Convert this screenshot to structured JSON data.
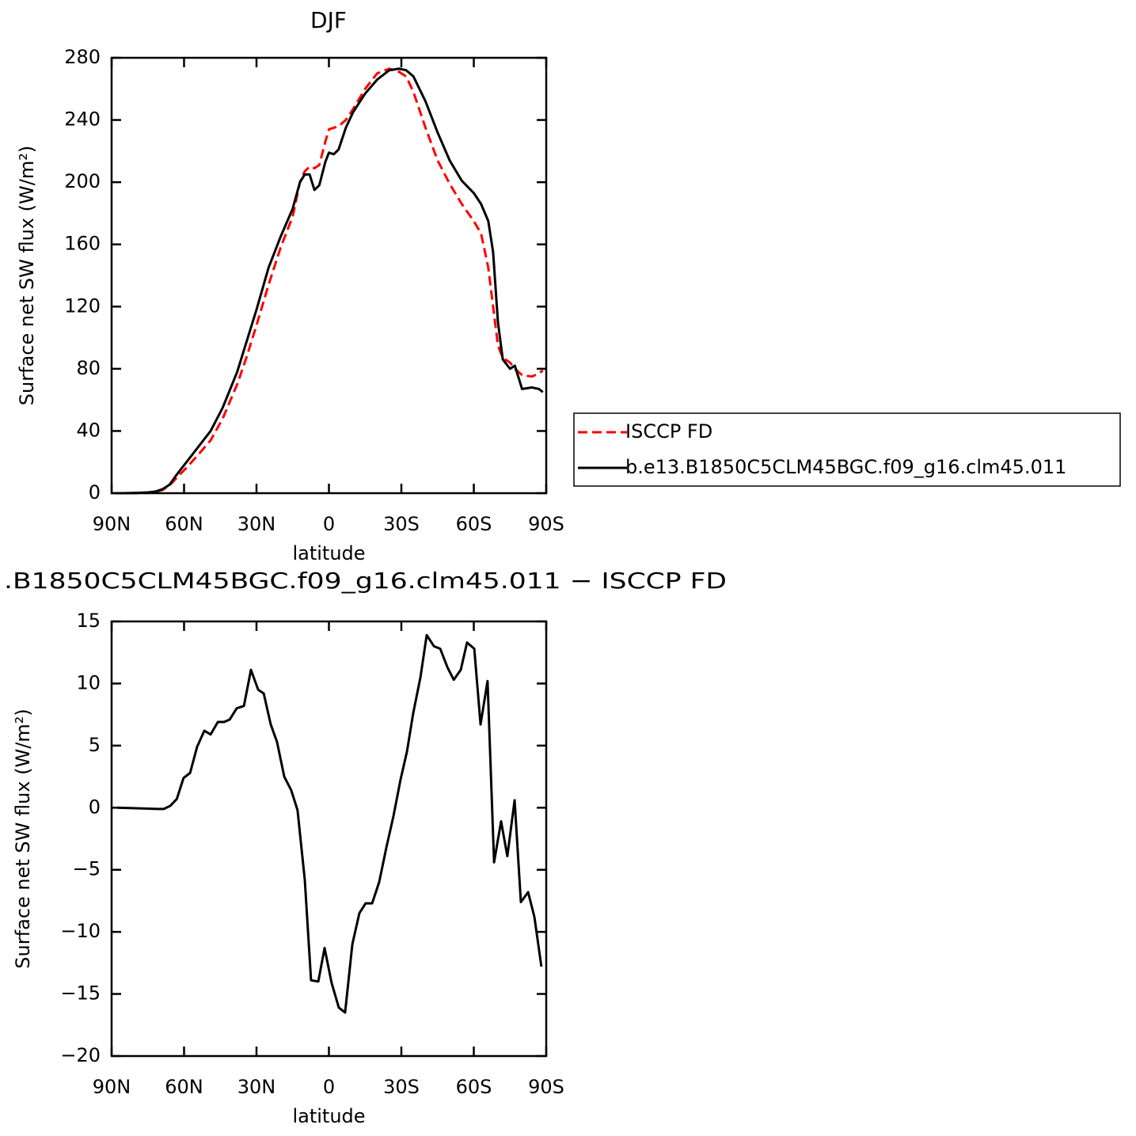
{
  "chart_data": [
    {
      "type": "line",
      "title": "DJF",
      "xlabel": "latitude",
      "ylabel": "Surface net SW flux (W/m²)",
      "x": [
        88.6,
        85,
        80,
        75,
        72,
        69,
        66,
        63,
        58,
        54,
        49,
        44,
        38,
        34,
        30,
        25,
        20,
        15,
        12,
        10,
        8,
        6,
        4,
        1.5,
        0,
        -2,
        -4,
        -7,
        -10,
        -15,
        -20,
        -25,
        -29,
        -32,
        -35,
        -40,
        -45,
        -50,
        -55,
        -60,
        -63,
        -66,
        -68,
        -70,
        -72,
        -75,
        -77,
        -80,
        -84,
        -87,
        -88.6
      ],
      "series": [
        {
          "name": "ISCCP FD",
          "color": "#ff0000",
          "dashed": true,
          "values": [
            0,
            0,
            0,
            0.2,
            0.8,
            2,
            5,
            10,
            18,
            25,
            34,
            48,
            70,
            88,
            108,
            134,
            158,
            178,
            200,
            207,
            210,
            209,
            211,
            226,
            234,
            235,
            236,
            240,
            247,
            260,
            270,
            273,
            271,
            268,
            258,
            235,
            214,
            199,
            186,
            175,
            167,
            145,
            120,
            95,
            87,
            84,
            80,
            76,
            75,
            77,
            79
          ]
        },
        {
          "name": "b.e13.B1850C5CLM45BGC.f09_g16.clm45.011",
          "color": "#000000",
          "dashed": false,
          "values": [
            0,
            0,
            0.2,
            0.5,
            1,
            2.5,
            5.5,
            12,
            22,
            30,
            40,
            55,
            78,
            98,
            118,
            145,
            165,
            183,
            200,
            205,
            205,
            195,
            198,
            213,
            219,
            218,
            221,
            235,
            245,
            257,
            266,
            272,
            273,
            272,
            268,
            252,
            232,
            214,
            201,
            193,
            186,
            175,
            155,
            110,
            86,
            80,
            82,
            67,
            68,
            67,
            65
          ]
        }
      ],
      "xlim": [
        90,
        -90
      ],
      "xticks": [
        {
          "value": 90,
          "label": "90N"
        },
        {
          "value": 60,
          "label": "60N"
        },
        {
          "value": 30,
          "label": "30N"
        },
        0,
        {
          "value": -30,
          "label": "30S"
        },
        {
          "value": -60,
          "label": "60S"
        },
        {
          "value": -90,
          "label": "90S"
        }
      ],
      "ylim": [
        0,
        280
      ],
      "yticks": [
        0,
        40,
        80,
        120,
        160,
        200,
        240,
        280
      ],
      "legend": "outside-right"
    },
    {
      "type": "line",
      "title": ".B1850C5CLM45BGC.f09_g16.clm45.011 − ISCCP FD",
      "xlabel": "latitude",
      "ylabel": "Surface net SW flux (W/m²)",
      "x": [
        87.7,
        70.7,
        68.4,
        65.7,
        63,
        60.2,
        57.5,
        54.6,
        51.6,
        49,
        46,
        43.4,
        41.1,
        38.2,
        35.2,
        32.3,
        29.3,
        27,
        24.1,
        21.5,
        18.5,
        15.6,
        13,
        10,
        7.4,
        4.4,
        1.8,
        -1.1,
        -4.1,
        -6.7,
        -9.7,
        -12.6,
        -15.2,
        -17.9,
        -20.8,
        -23.8,
        -26.7,
        -29.7,
        -32.3,
        -34.9,
        -37.9,
        -40.5,
        -43.5,
        -46.1,
        -49.1,
        -51.7,
        -54.6,
        -57.2,
        -60.2,
        -62.8,
        -65.7,
        -68.4,
        -71.3,
        -73.9,
        -76.9,
        -79.5,
        -82.5,
        -85.1,
        -88
      ],
      "series": [
        {
          "color": "#000000",
          "dashed": false,
          "values": [
            0,
            -0.1,
            -0.1,
            0.15,
            0.7,
            2.4,
            2.8,
            4.9,
            6.2,
            5.9,
            6.9,
            6.9,
            7.1,
            8.0,
            8.2,
            11.1,
            9.5,
            9.2,
            6.7,
            5.3,
            2.5,
            1.4,
            -0.2,
            -5.8,
            -13.9,
            -14.0,
            -11.3,
            -14.1,
            -16.1,
            -16.5,
            -11.0,
            -8.5,
            -7.7,
            -7.7,
            -6.0,
            -3.2,
            -0.7,
            2.3,
            4.5,
            7.6,
            10.5,
            13.9,
            13.0,
            12.8,
            11.3,
            10.3,
            11.1,
            13.3,
            12.8,
            6.7,
            10.2,
            -4.4,
            -1.1,
            -3.9,
            0.6,
            -7.6,
            -6.8,
            -8.8,
            -12.8
          ]
        }
      ],
      "xlim": [
        90,
        -90
      ],
      "xticks": [
        {
          "value": 90,
          "label": "90N"
        },
        {
          "value": 60,
          "label": "60N"
        },
        {
          "value": 30,
          "label": "30N"
        },
        0,
        {
          "value": -30,
          "label": "30S"
        },
        {
          "value": -60,
          "label": "60S"
        },
        {
          "value": -90,
          "label": "90S"
        }
      ],
      "ylim": [
        -20,
        15
      ],
      "yticks": [
        {
          "value": -20,
          "label": "−20"
        },
        {
          "value": -15,
          "label": "−15"
        },
        {
          "value": -10,
          "label": "−10"
        },
        {
          "value": -5,
          "label": "−5"
        },
        0,
        5,
        10,
        15
      ]
    }
  ]
}
